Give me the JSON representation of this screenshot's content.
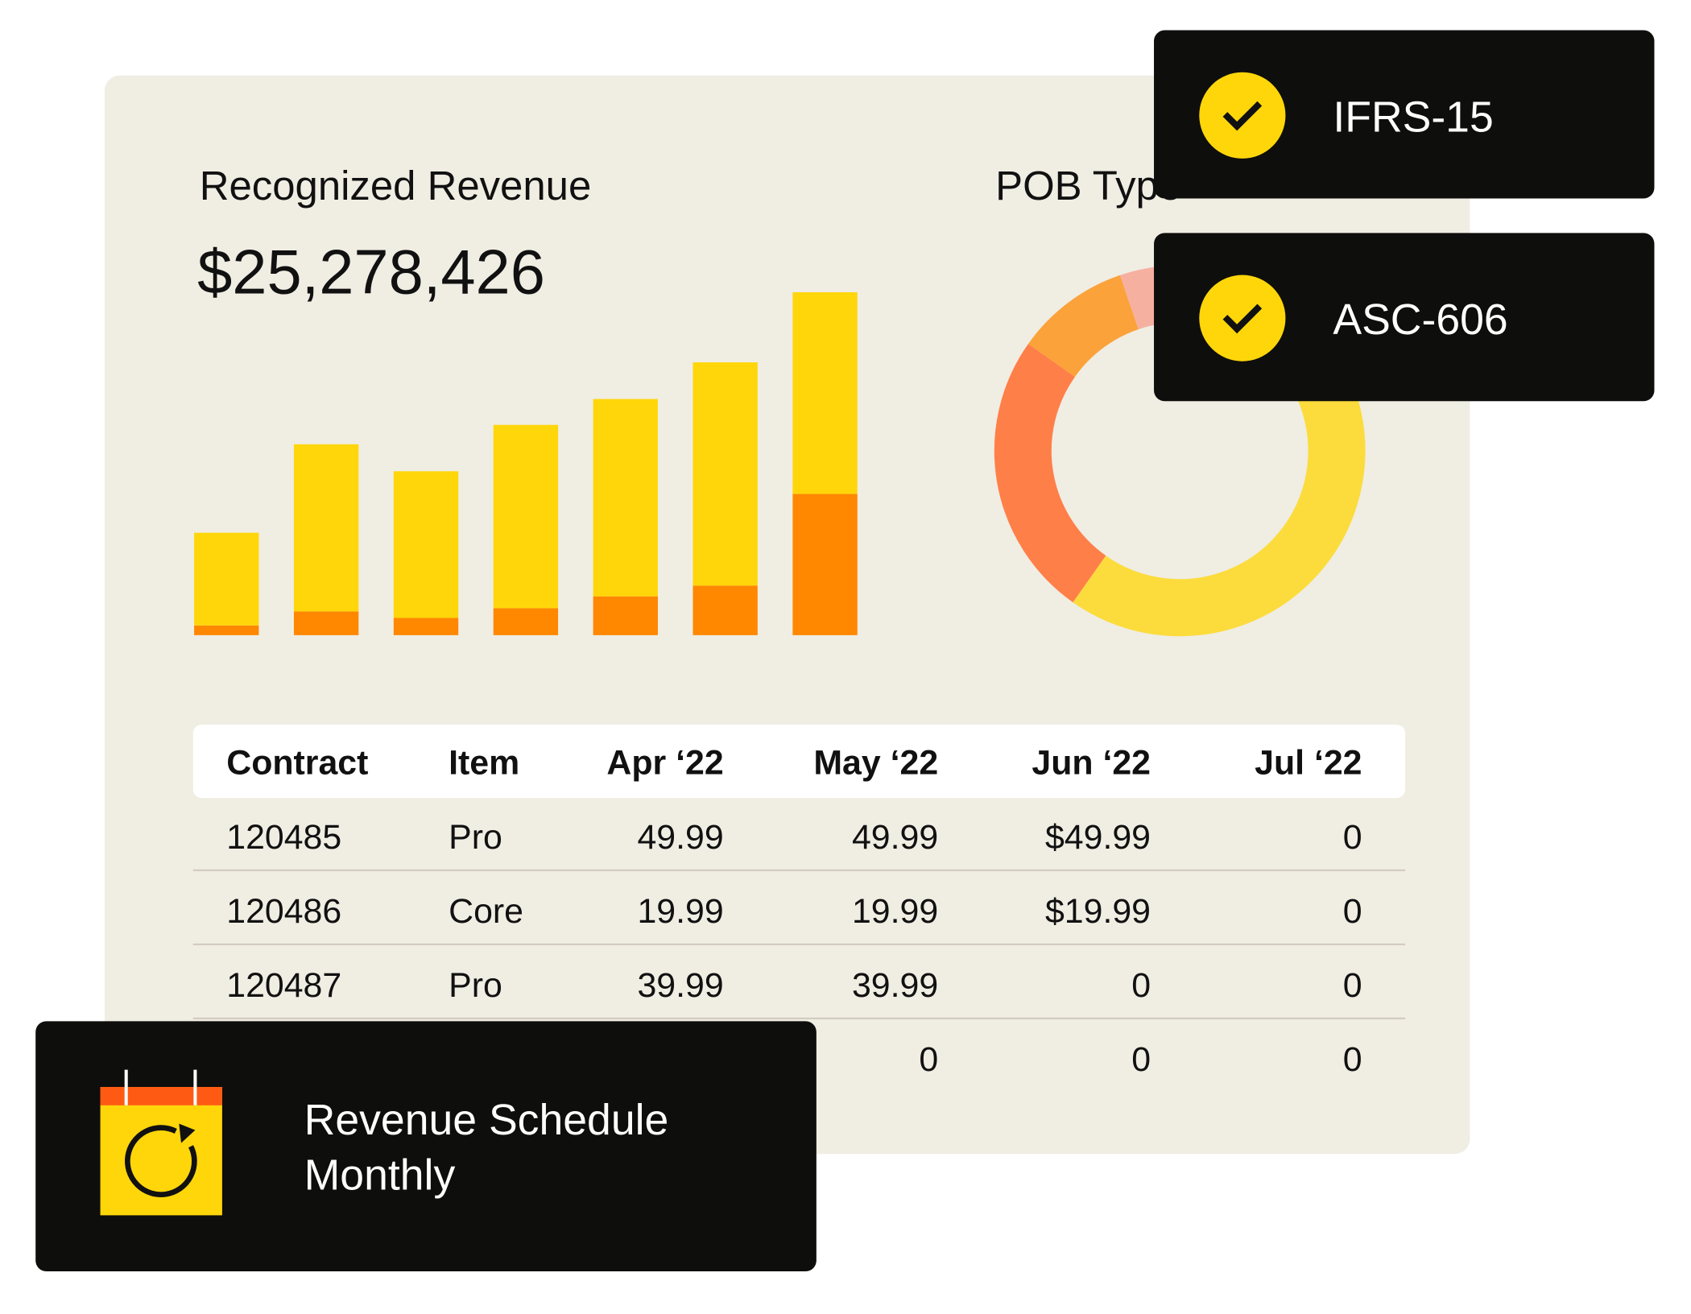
{
  "chart_data": [
    {
      "type": "bar",
      "title": "Recognized Revenue",
      "subtitle": "$25,278,426",
      "categories": [
        null,
        null,
        null,
        null,
        null,
        null,
        null
      ],
      "series": [
        {
          "color": "#FF8800",
          "values": [
            9,
            22,
            16,
            25,
            36,
            46,
            131
          ]
        },
        {
          "color": "#FFD60A",
          "values": [
            86,
            155,
            136,
            170,
            183,
            207,
            187
          ]
        }
      ],
      "stacked": true,
      "ylim": [
        0,
        320
      ]
    },
    {
      "type": "pie",
      "title": "POB Type",
      "donut": true,
      "values": [
        62,
        25,
        10,
        3
      ],
      "colors": [
        "#FBDC3C",
        "#FF7F48",
        "#FBA23A",
        "#F6B0A0"
      ]
    }
  ],
  "table": {
    "header": [
      "Contract",
      "Item",
      "Apr ‘22",
      "May ‘22",
      "Jun ‘22",
      "Jul ‘22"
    ],
    "rows": [
      [
        "120485",
        "Pro",
        "49.99",
        "49.99",
        "$49.99",
        "0"
      ],
      [
        "120486",
        "Core",
        "19.99",
        "19.99",
        "$19.99",
        "0"
      ],
      [
        "120487",
        "Pro",
        "39.99",
        "39.99",
        "0",
        "0"
      ],
      [
        null,
        null,
        null,
        "0",
        "0",
        "0"
      ]
    ]
  },
  "badges": [
    "IFRS-15",
    "ASC-606"
  ],
  "schedule": {
    "title": "Revenue Schedule",
    "frequency": "Monthly"
  }
}
